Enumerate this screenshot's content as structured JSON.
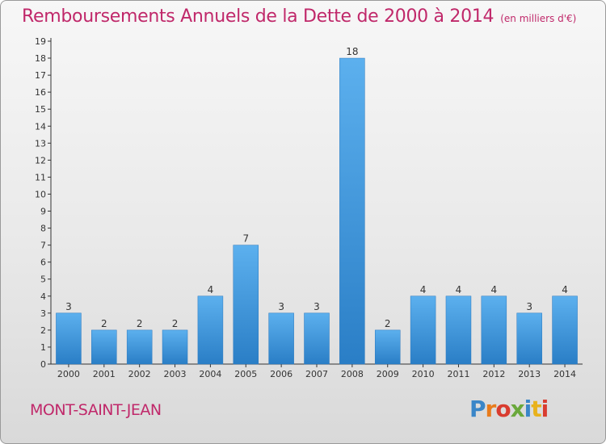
{
  "chart_data": {
    "type": "bar",
    "title": "Remboursements Annuels de la Dette de 2000 à 2014",
    "subtitle": "(en milliers d'€)",
    "xlabel": "",
    "ylabel": "",
    "categories": [
      "2000",
      "2001",
      "2002",
      "2003",
      "2004",
      "2005",
      "2006",
      "2007",
      "2008",
      "2009",
      "2010",
      "2011",
      "2012",
      "2013",
      "2014"
    ],
    "values": [
      3,
      2,
      2,
      2,
      4,
      7,
      3,
      3,
      18,
      2,
      4,
      4,
      4,
      3,
      4
    ],
    "ylim": [
      0,
      19
    ],
    "yticks": [
      0,
      1,
      2,
      3,
      4,
      5,
      6,
      7,
      8,
      9,
      10,
      11,
      12,
      13,
      14,
      15,
      16,
      17,
      18,
      19
    ],
    "grid": false,
    "bar_color": "#3a8fd6"
  },
  "footer": {
    "city": "MONT-SAINT-JEAN",
    "logo": [
      "P",
      "r",
      "o",
      "x",
      "i",
      "t",
      "i"
    ]
  }
}
